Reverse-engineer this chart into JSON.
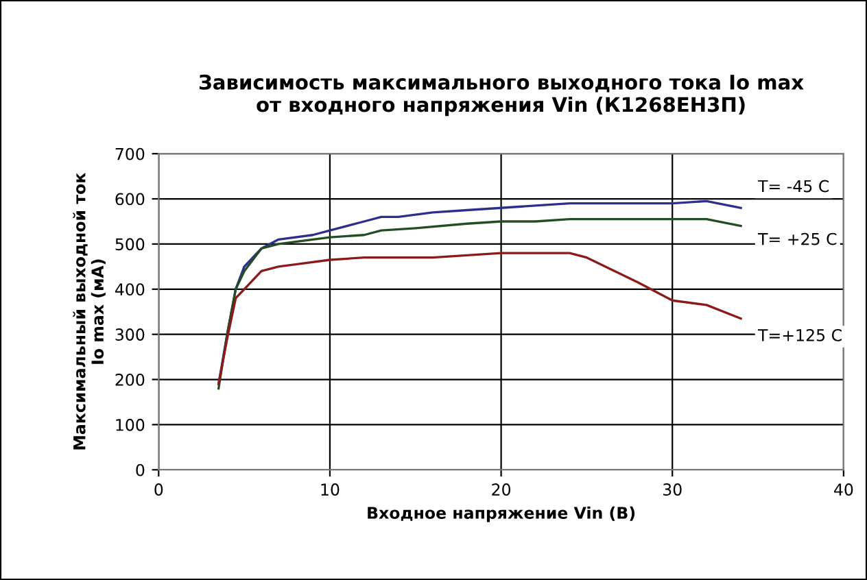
{
  "chart_data": {
    "type": "line",
    "title": "Зависимость максимального выходного тока Io max\nот входного напряжения Vin (К1268ЕН3П)",
    "xlabel": "Входное напряжение Vin (В)",
    "ylabel": "Максимальный выходной ток\nIo max (мА)",
    "xlim": [
      0,
      40
    ],
    "xticks": [
      0,
      10,
      20,
      30,
      40
    ],
    "ylim": [
      0,
      700
    ],
    "yticks": [
      0,
      100,
      200,
      300,
      400,
      500,
      600,
      700
    ],
    "grid": true,
    "legend": false,
    "marker": "none",
    "line_style": "solid",
    "series": [
      {
        "name": "T= -45 C",
        "color": "#2e2e8c",
        "x": [
          3.5,
          4,
          4.5,
          5,
          6,
          7,
          9,
          10,
          12,
          13,
          14,
          16,
          18,
          20,
          22,
          24,
          30,
          32,
          34
        ],
        "values": [
          190,
          300,
          400,
          450,
          490,
          510,
          520,
          530,
          550,
          560,
          560,
          570,
          575,
          580,
          585,
          590,
          590,
          595,
          580
        ]
      },
      {
        "name": "T= +25 C",
        "color": "#234d23",
        "x": [
          3.5,
          4,
          4.5,
          5,
          6,
          7,
          10,
          12,
          13,
          15,
          18,
          20,
          22,
          24,
          32,
          34
        ],
        "values": [
          180,
          300,
          400,
          440,
          490,
          500,
          515,
          520,
          530,
          535,
          545,
          550,
          550,
          555,
          555,
          540
        ]
      },
      {
        "name": "T=+125 C",
        "color": "#8c1a1a",
        "x": [
          3.5,
          4,
          4.5,
          5,
          6,
          7,
          8,
          10,
          12,
          16,
          18,
          20,
          24,
          25,
          28,
          30,
          32,
          34
        ],
        "values": [
          190,
          290,
          380,
          400,
          440,
          450,
          455,
          465,
          470,
          470,
          475,
          480,
          480,
          470,
          415,
          375,
          365,
          335
        ]
      }
    ]
  }
}
